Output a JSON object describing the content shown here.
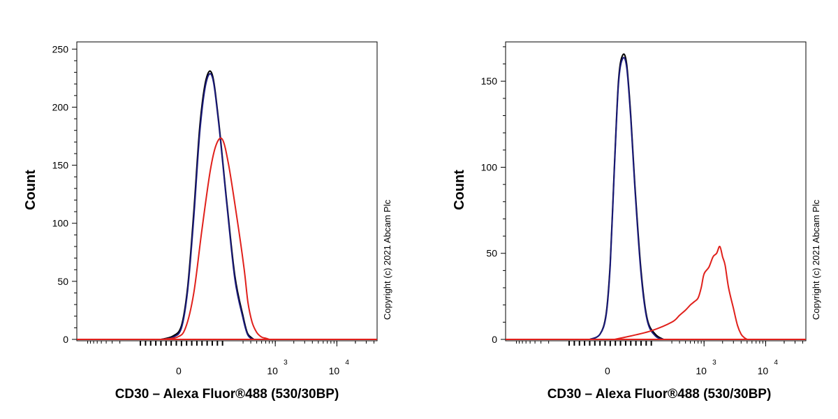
{
  "colors": {
    "axis": "#000000",
    "isotype": "#1a1a7a",
    "unstained": "#000000",
    "stained": "#e0201b"
  },
  "chart_data": [
    {
      "type": "line",
      "x_scale": "biexponential",
      "xlim": [
        -1500,
        45000
      ],
      "ylim": [
        0,
        255
      ],
      "grid": false,
      "xlabel": "CD30 – Alexa Fluor®488 (530/30BP)",
      "ylabel": "Count",
      "annotation": "Copyright (c) 2021 Abcam Plc",
      "y_ticks": [
        {
          "value": 0,
          "label": "0"
        },
        {
          "value": 50,
          "label": "50"
        },
        {
          "value": 100,
          "label": "100"
        },
        {
          "value": 150,
          "label": "150"
        },
        {
          "value": 200,
          "label": "200"
        },
        {
          "value": 250,
          "label": "250"
        }
      ],
      "x_ticks": [
        {
          "value": 0,
          "base": "0",
          "exp": ""
        },
        {
          "value": 1000,
          "base": "10",
          "exp": "3"
        },
        {
          "value": 10000,
          "base": "10",
          "exp": "4"
        }
      ],
      "series": [
        {
          "color": "#000000",
          "x": [
            -100,
            -40,
            0,
            30,
            60,
            90,
            120,
            150,
            180,
            220,
            260,
            300,
            350,
            400,
            450
          ],
          "y": [
            0,
            3,
            12,
            45,
            110,
            185,
            224,
            228,
            190,
            120,
            55,
            20,
            6,
            2,
            0
          ]
        },
        {
          "color": "#1a1a7a",
          "x": [
            -100,
            -40,
            0,
            30,
            60,
            90,
            120,
            150,
            180,
            220,
            260,
            300,
            350,
            400,
            450
          ],
          "y": [
            0,
            2,
            10,
            42,
            105,
            180,
            221,
            226,
            188,
            118,
            52,
            18,
            5,
            1,
            0
          ]
        },
        {
          "color": "#e0201b",
          "x": [
            -100,
            -20,
            20,
            60,
            100,
            140,
            170,
            200,
            230,
            270,
            310,
            360,
            420,
            500,
            600,
            700,
            800
          ],
          "y": [
            0,
            2,
            10,
            40,
            95,
            145,
            168,
            172,
            150,
            105,
            62,
            32,
            15,
            6,
            2,
            1,
            0
          ]
        }
      ]
    },
    {
      "type": "line",
      "x_scale": "biexponential",
      "xlim": [
        -1500,
        45000
      ],
      "ylim": [
        0,
        172
      ],
      "grid": false,
      "xlabel": "CD30 – Alexa Fluor®488 (530/30BP)",
      "ylabel": "Count",
      "annotation": "Copyright (c) 2021 Abcam Plc",
      "y_ticks": [
        {
          "value": 0,
          "label": "0"
        },
        {
          "value": 50,
          "label": "50"
        },
        {
          "value": 100,
          "label": "100"
        },
        {
          "value": 150,
          "label": "150"
        }
      ],
      "x_ticks": [
        {
          "value": 0,
          "base": "0",
          "exp": ""
        },
        {
          "value": 1000,
          "base": "10",
          "exp": "3"
        },
        {
          "value": 10000,
          "base": "10",
          "exp": "4"
        }
      ],
      "series": [
        {
          "color": "#000000",
          "x": [
            -100,
            -50,
            -20,
            0,
            20,
            40,
            60,
            80,
            100,
            120,
            150,
            180,
            220,
            260
          ],
          "y": [
            0,
            3,
            15,
            45,
            100,
            150,
            165,
            160,
            130,
            90,
            40,
            12,
            3,
            0
          ]
        },
        {
          "color": "#1a1a7a",
          "x": [
            -100,
            -50,
            -20,
            0,
            20,
            40,
            60,
            80,
            100,
            120,
            150,
            180,
            220,
            260
          ],
          "y": [
            0,
            3,
            14,
            43,
            98,
            148,
            163,
            158,
            128,
            88,
            38,
            11,
            2,
            0
          ]
        },
        {
          "color": "#e0201b",
          "x": [
            20,
            100,
            200,
            300,
            400,
            500,
            600,
            700,
            800,
            900,
            1000,
            1200,
            1400,
            1600,
            1800,
            2000,
            2200,
            2500,
            3000,
            3500,
            4000,
            4500,
            5000
          ],
          "y": [
            0,
            2,
            5,
            10,
            14,
            17,
            20,
            22,
            24,
            30,
            38,
            42,
            48,
            50,
            54,
            48,
            43,
            30,
            18,
            8,
            3,
            1,
            0
          ]
        }
      ]
    }
  ]
}
